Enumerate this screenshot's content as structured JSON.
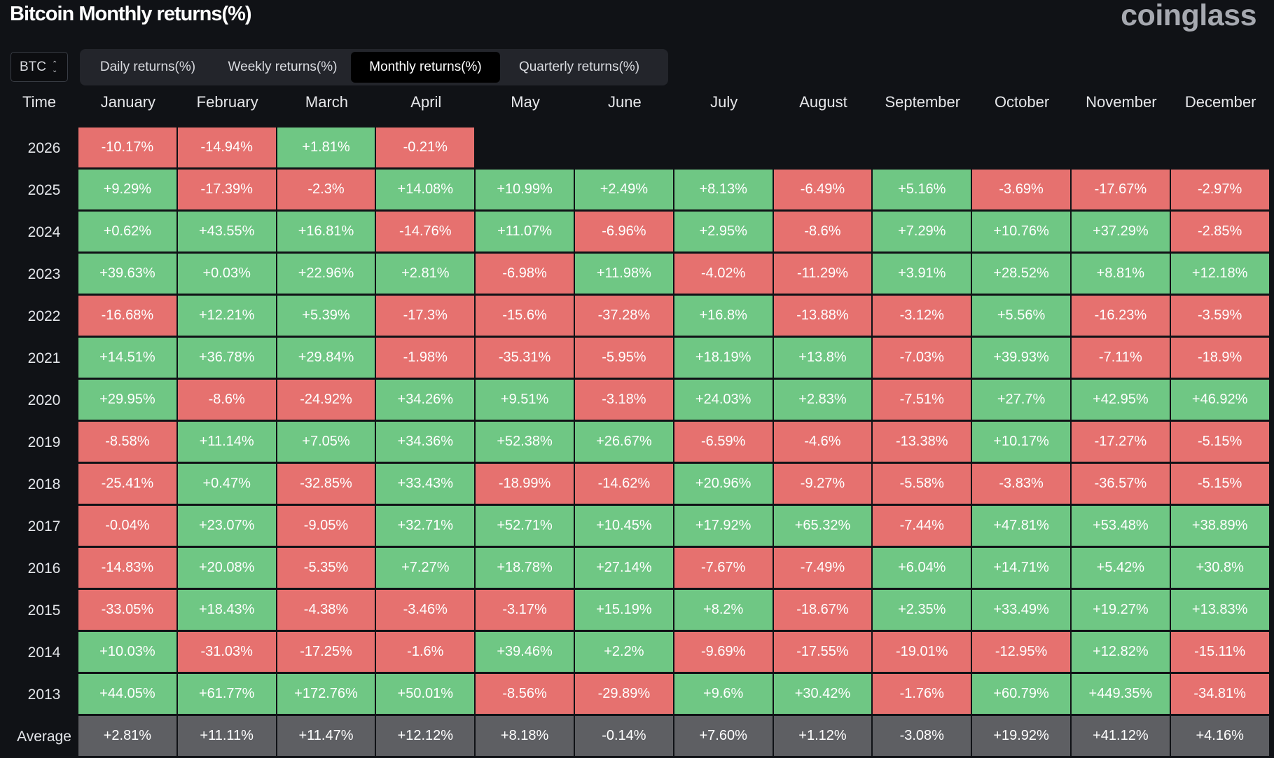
{
  "header": {
    "title": "Bitcoin Monthly returns(%)",
    "brand": "coinglass"
  },
  "asset_selector": {
    "value": "BTC",
    "icon": "chevron-up-down-icon"
  },
  "tabs": [
    {
      "label": "Daily returns(%)",
      "active": false
    },
    {
      "label": "Weekly returns(%)",
      "active": false
    },
    {
      "label": "Monthly returns(%)",
      "active": true
    },
    {
      "label": "Quarterly returns(%)",
      "active": false
    }
  ],
  "colors": {
    "positive": "#6fc784",
    "negative": "#e6716f",
    "average": "#5e5f63",
    "background": "#101216"
  },
  "table": {
    "time_header": "Time",
    "months": [
      "January",
      "February",
      "March",
      "April",
      "May",
      "June",
      "July",
      "August",
      "September",
      "October",
      "November",
      "December"
    ],
    "rows": [
      {
        "label": "2026",
        "values": [
          "-10.17%",
          "-14.94%",
          "+1.81%",
          "-0.21%",
          "",
          "",
          "",
          "",
          "",
          "",
          "",
          ""
        ]
      },
      {
        "label": "2025",
        "values": [
          "+9.29%",
          "-17.39%",
          "-2.3%",
          "+14.08%",
          "+10.99%",
          "+2.49%",
          "+8.13%",
          "-6.49%",
          "+5.16%",
          "-3.69%",
          "-17.67%",
          "-2.97%"
        ]
      },
      {
        "label": "2024",
        "values": [
          "+0.62%",
          "+43.55%",
          "+16.81%",
          "-14.76%",
          "+11.07%",
          "-6.96%",
          "+2.95%",
          "-8.6%",
          "+7.29%",
          "+10.76%",
          "+37.29%",
          "-2.85%"
        ]
      },
      {
        "label": "2023",
        "values": [
          "+39.63%",
          "+0.03%",
          "+22.96%",
          "+2.81%",
          "-6.98%",
          "+11.98%",
          "-4.02%",
          "-11.29%",
          "+3.91%",
          "+28.52%",
          "+8.81%",
          "+12.18%"
        ]
      },
      {
        "label": "2022",
        "values": [
          "-16.68%",
          "+12.21%",
          "+5.39%",
          "-17.3%",
          "-15.6%",
          "-37.28%",
          "+16.8%",
          "-13.88%",
          "-3.12%",
          "+5.56%",
          "-16.23%",
          "-3.59%"
        ]
      },
      {
        "label": "2021",
        "values": [
          "+14.51%",
          "+36.78%",
          "+29.84%",
          "-1.98%",
          "-35.31%",
          "-5.95%",
          "+18.19%",
          "+13.8%",
          "-7.03%",
          "+39.93%",
          "-7.11%",
          "-18.9%"
        ]
      },
      {
        "label": "2020",
        "values": [
          "+29.95%",
          "-8.6%",
          "-24.92%",
          "+34.26%",
          "+9.51%",
          "-3.18%",
          "+24.03%",
          "+2.83%",
          "-7.51%",
          "+27.7%",
          "+42.95%",
          "+46.92%"
        ]
      },
      {
        "label": "2019",
        "values": [
          "-8.58%",
          "+11.14%",
          "+7.05%",
          "+34.36%",
          "+52.38%",
          "+26.67%",
          "-6.59%",
          "-4.6%",
          "-13.38%",
          "+10.17%",
          "-17.27%",
          "-5.15%"
        ]
      },
      {
        "label": "2018",
        "values": [
          "-25.41%",
          "+0.47%",
          "-32.85%",
          "+33.43%",
          "-18.99%",
          "-14.62%",
          "+20.96%",
          "-9.27%",
          "-5.58%",
          "-3.83%",
          "-36.57%",
          "-5.15%"
        ]
      },
      {
        "label": "2017",
        "values": [
          "-0.04%",
          "+23.07%",
          "-9.05%",
          "+32.71%",
          "+52.71%",
          "+10.45%",
          "+17.92%",
          "+65.32%",
          "-7.44%",
          "+47.81%",
          "+53.48%",
          "+38.89%"
        ]
      },
      {
        "label": "2016",
        "values": [
          "-14.83%",
          "+20.08%",
          "-5.35%",
          "+7.27%",
          "+18.78%",
          "+27.14%",
          "-7.67%",
          "-7.49%",
          "+6.04%",
          "+14.71%",
          "+5.42%",
          "+30.8%"
        ]
      },
      {
        "label": "2015",
        "values": [
          "-33.05%",
          "+18.43%",
          "-4.38%",
          "-3.46%",
          "-3.17%",
          "+15.19%",
          "+8.2%",
          "-18.67%",
          "+2.35%",
          "+33.49%",
          "+19.27%",
          "+13.83%"
        ]
      },
      {
        "label": "2014",
        "values": [
          "+10.03%",
          "-31.03%",
          "-17.25%",
          "-1.6%",
          "+39.46%",
          "+2.2%",
          "-9.69%",
          "-17.55%",
          "-19.01%",
          "-12.95%",
          "+12.82%",
          "-15.11%"
        ]
      },
      {
        "label": "2013",
        "values": [
          "+44.05%",
          "+61.77%",
          "+172.76%",
          "+50.01%",
          "-8.56%",
          "-29.89%",
          "+9.6%",
          "+30.42%",
          "-1.76%",
          "+60.79%",
          "+449.35%",
          "-34.81%"
        ]
      }
    ],
    "average": {
      "label": "Average",
      "values": [
        "+2.81%",
        "+11.11%",
        "+11.47%",
        "+12.12%",
        "+8.18%",
        "-0.14%",
        "+7.60%",
        "+1.12%",
        "-3.08%",
        "+19.92%",
        "+41.12%",
        "+4.16%"
      ]
    }
  }
}
